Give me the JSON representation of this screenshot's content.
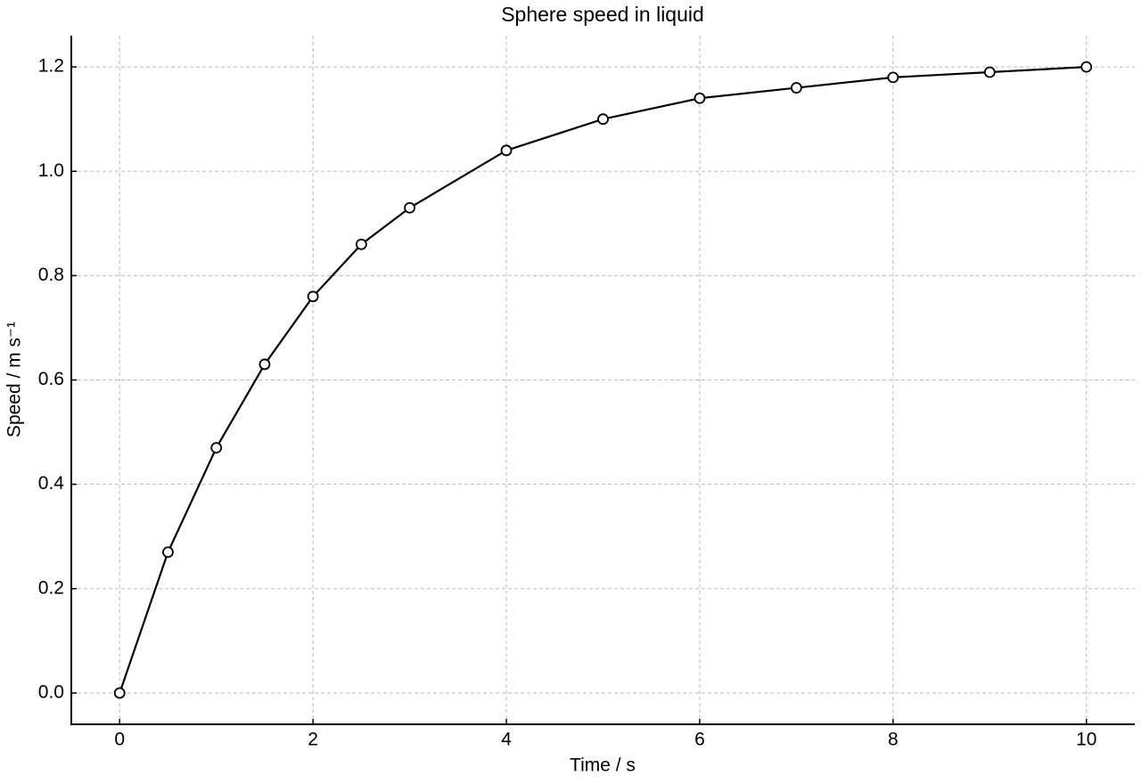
{
  "chart_data": {
    "type": "line",
    "title": "Sphere speed in liquid",
    "x_label": "Time / s",
    "y_label": "Speed / m s⁻¹",
    "x": [
      0,
      0.5,
      1,
      1.5,
      2,
      2.5,
      3,
      4,
      5,
      6,
      7,
      8,
      9,
      10
    ],
    "series": [
      {
        "color": "#000000",
        "values": [
          0,
          0.27,
          0.47,
          0.63,
          0.76,
          0.86,
          0.93,
          1.04,
          1.1,
          1.14,
          1.16,
          1.18,
          1.19,
          1.2
        ]
      }
    ],
    "xlim": [
      -0.5,
      10.5
    ],
    "ylim": [
      -0.06,
      1.26
    ],
    "xticks": [
      0,
      2,
      4,
      6,
      8,
      10
    ],
    "yticks": [
      {
        "value": 0,
        "label": "0.0"
      },
      0.2,
      0.4,
      0.6,
      0.8,
      {
        "value": 1,
        "label": "1.0"
      },
      1.2
    ],
    "grid": true
  }
}
